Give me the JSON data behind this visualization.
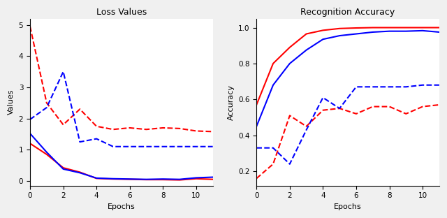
{
  "epochs": [
    0,
    1,
    2,
    3,
    4,
    5,
    6,
    7,
    8,
    9,
    10,
    11
  ],
  "loss_red_solid": [
    1.2,
    0.85,
    0.42,
    0.28,
    0.08,
    0.06,
    0.05,
    0.04,
    0.04,
    0.03,
    0.07,
    0.05
  ],
  "loss_blue_solid": [
    1.52,
    0.92,
    0.38,
    0.26,
    0.09,
    0.07,
    0.06,
    0.05,
    0.06,
    0.05,
    0.1,
    0.12
  ],
  "loss_red_dashed": [
    4.95,
    2.5,
    1.8,
    2.3,
    1.75,
    1.65,
    1.7,
    1.65,
    1.7,
    1.68,
    1.6,
    1.58
  ],
  "loss_blue_dashed": [
    1.97,
    2.35,
    3.5,
    1.25,
    1.35,
    1.1,
    1.1,
    1.1,
    1.1,
    1.1,
    1.1,
    1.1
  ],
  "acc_red_solid": [
    0.57,
    0.8,
    0.89,
    0.965,
    0.985,
    0.995,
    0.998,
    1.0,
    1.0,
    1.0,
    1.0,
    1.0
  ],
  "acc_blue_solid": [
    0.45,
    0.68,
    0.8,
    0.875,
    0.935,
    0.955,
    0.965,
    0.975,
    0.98,
    0.98,
    0.983,
    0.975
  ],
  "acc_red_dashed": [
    0.16,
    0.24,
    0.51,
    0.45,
    0.54,
    0.55,
    0.52,
    0.56,
    0.56,
    0.52,
    0.56,
    0.57
  ],
  "acc_blue_dashed": [
    0.33,
    0.33,
    0.24,
    0.43,
    0.61,
    0.55,
    0.67,
    0.67,
    0.67,
    0.67,
    0.68,
    0.68
  ],
  "loss_title": "Loss Values",
  "acc_title": "Recognition Accuracy",
  "xlabel": "Epochs",
  "loss_ylabel": "Values",
  "acc_ylabel": "Accuracy",
  "red": "#ff0000",
  "blue": "#0000ff",
  "linewidth": 1.5,
  "fig_facecolor": "#f0f0f0",
  "axes_facecolor": "#ffffff",
  "loss_xlim": [
    0,
    11
  ],
  "loss_ylim": [
    -0.15,
    5.2
  ],
  "loss_xticks": [
    0,
    2,
    4,
    6,
    8,
    10
  ],
  "loss_yticks": [
    0,
    1,
    2,
    3,
    4,
    5
  ],
  "acc_xlim": [
    0,
    11
  ],
  "acc_ylim": [
    0.12,
    1.05
  ],
  "acc_xticks": [
    0,
    2,
    4,
    6,
    8,
    10
  ],
  "acc_yticks": [
    0.2,
    0.4,
    0.6,
    0.8,
    1.0
  ]
}
